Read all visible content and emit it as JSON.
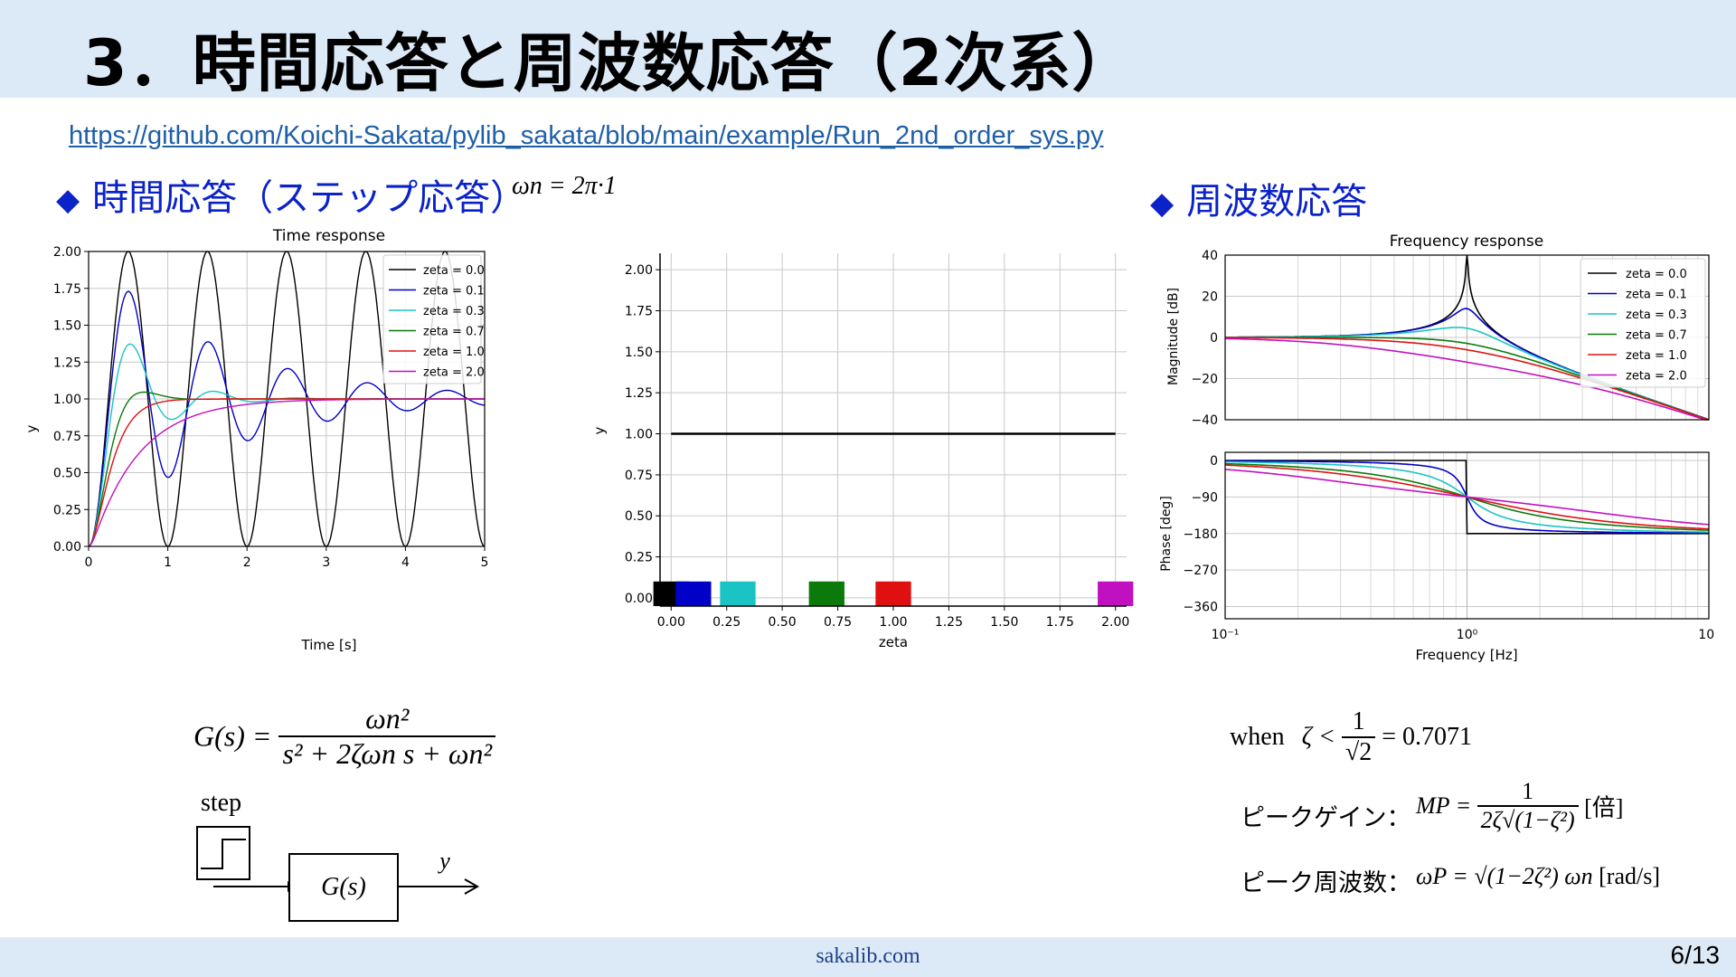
{
  "title": "3．時間応答と周波数応答（2次系）",
  "link": "https://github.com/Koichi-Sakata/pylib_sakata/blob/main/example/Run_2nd_order_sys.py",
  "sections": {
    "time": {
      "marker": "◆",
      "label": "時間応答（ステップ応答）",
      "omega_eq": "ωn = 2π·1"
    },
    "freq": {
      "marker": "◆",
      "label": "周波数応答"
    }
  },
  "colors": {
    "zeta_0_0": "#000000",
    "zeta_0_1": "#0000c8",
    "zeta_0_3": "#1ac4c4",
    "zeta_0_7": "#0a7a0a",
    "zeta_1_0": "#e01010",
    "zeta_2_0": "#c010c0"
  },
  "chart_data": [
    {
      "type": "line",
      "title": "Time response",
      "xlabel": "Time [s]",
      "ylabel": "y",
      "xlim": [
        0,
        5
      ],
      "ylim": [
        0,
        2
      ],
      "xticks": [
        "0",
        "1",
        "2",
        "3",
        "4",
        "5"
      ],
      "yticks": [
        "0.00",
        "0.25",
        "0.50",
        "0.75",
        "1.00",
        "1.25",
        "1.50",
        "1.75",
        "2.00"
      ],
      "grid": true,
      "legend": "top-right",
      "omega_n": 6.2832,
      "series": [
        {
          "name": "zeta = 0.0",
          "zeta": 0.0
        },
        {
          "name": "zeta = 0.1",
          "zeta": 0.1
        },
        {
          "name": "zeta = 0.3",
          "zeta": 0.3
        },
        {
          "name": "zeta = 0.7",
          "zeta": 0.7
        },
        {
          "name": "zeta = 1.0",
          "zeta": 1.0
        },
        {
          "name": "zeta = 2.0",
          "zeta": 2.0
        }
      ]
    },
    {
      "type": "bar",
      "title": "",
      "xlabel": "zeta",
      "ylabel": "y",
      "xlim": [
        -0.05,
        2.05
      ],
      "ylim": [
        -0.05,
        2.1
      ],
      "xticks": [
        "0.00",
        "0.25",
        "0.50",
        "0.75",
        "1.00",
        "1.25",
        "1.50",
        "1.75",
        "2.00"
      ],
      "yticks": [
        "0.00",
        "0.25",
        "0.50",
        "0.75",
        "1.00",
        "1.25",
        "1.50",
        "1.75",
        "2.00"
      ],
      "grid": true,
      "line": {
        "x": [
          0,
          2
        ],
        "y": [
          1,
          1
        ]
      },
      "bars": [
        {
          "x": 0.0,
          "height": 0.1
        },
        {
          "x": 0.1,
          "height": 0.1
        },
        {
          "x": 0.3,
          "height": 0.1
        },
        {
          "x": 0.7,
          "height": 0.1
        },
        {
          "x": 1.0,
          "height": 0.1
        },
        {
          "x": 2.0,
          "height": 0.1
        }
      ]
    },
    {
      "type": "line",
      "title": "Frequency response",
      "xlabel": "",
      "ylabel": "Magnitude [dB]",
      "xlim": [
        0.1,
        10
      ],
      "ylim": [
        -40,
        40
      ],
      "xscale": "log",
      "yticks": [
        "40",
        "20",
        "0",
        "−20",
        "−40"
      ],
      "grid": true,
      "legend": "top-right",
      "natural_frequency_hz": 1.0,
      "series": [
        {
          "name": "zeta = 0.0",
          "zeta": 0.0
        },
        {
          "name": "zeta = 0.1",
          "zeta": 0.1
        },
        {
          "name": "zeta = 0.3",
          "zeta": 0.3
        },
        {
          "name": "zeta = 0.7",
          "zeta": 0.7
        },
        {
          "name": "zeta = 1.0",
          "zeta": 1.0
        },
        {
          "name": "zeta = 2.0",
          "zeta": 2.0
        }
      ]
    },
    {
      "type": "line",
      "title": "",
      "xlabel": "Frequency [Hz]",
      "ylabel": "Phase [deg]",
      "xlim": [
        0.1,
        10
      ],
      "ylim": [
        -390,
        20
      ],
      "xscale": "log",
      "xticks": [
        "10⁻¹",
        "10⁰",
        "10¹"
      ],
      "yticks": [
        "0",
        "−90",
        "−180",
        "−270",
        "−360"
      ],
      "grid": true
    }
  ],
  "formulas": {
    "transfer": {
      "lhs": "G(s) =",
      "num": "ωn²",
      "den": "s² + 2ζωn s + ωn²"
    },
    "step_label": "step",
    "block_label": "G(s)",
    "output_label": "y",
    "when": {
      "prefix": "when",
      "expr": "ζ <",
      "num": "1",
      "den": "√2",
      "result": "= 0.7071"
    },
    "peak_gain": {
      "label": "ピークゲイン：",
      "lhs": "MP =",
      "num": "1",
      "den": "2ζ√(1−ζ²)",
      "unit": "[倍]"
    },
    "peak_freq": {
      "label": "ピーク周波数：",
      "expr": "ωP = √(1−2ζ²) ωn",
      "unit": "[rad/s]"
    }
  },
  "footer": {
    "site": "sakalib.com",
    "page": "6/13"
  }
}
